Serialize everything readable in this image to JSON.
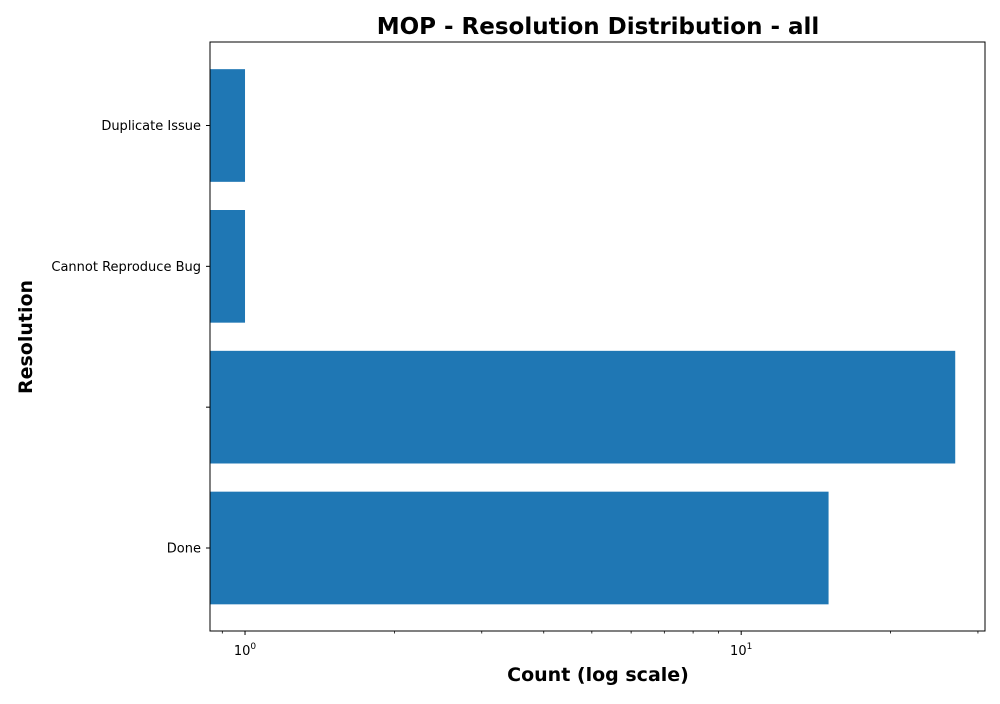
{
  "chart_data": {
    "type": "bar",
    "orientation": "horizontal",
    "title": "MOP - Resolution Distribution - all",
    "xlabel": "Count (log scale)",
    "ylabel": "Resolution",
    "xscale": "log",
    "xlim": [
      0.85,
      31
    ],
    "categories": [
      "Duplicate Issue",
      "Cannot Reproduce Bug",
      "",
      "Done"
    ],
    "values": [
      1,
      1,
      27,
      15
    ],
    "x_major_ticks": [
      {
        "value": 1,
        "base": "10",
        "exp": "0"
      },
      {
        "value": 10,
        "base": "10",
        "exp": "1"
      }
    ],
    "grid": false,
    "legend": "none",
    "colors": {
      "bar": "#1f77b4",
      "axis": "#000000",
      "background": "#ffffff"
    }
  }
}
